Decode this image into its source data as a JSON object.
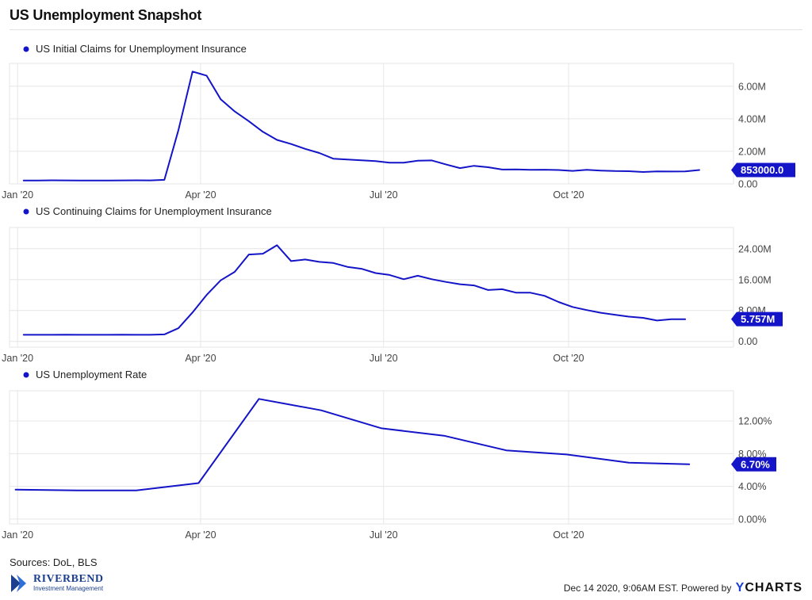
{
  "title": "US Unemployment Snapshot",
  "sources": "Sources: DoL, BLS",
  "footer": {
    "timestamp": "Dec 14 2020, 9:06AM EST. Powered by",
    "brand_prefix": "Y",
    "brand_rest": "CHARTS"
  },
  "logo": {
    "name": "RIVERBEND",
    "tagline": "Investment Management"
  },
  "colors": {
    "series": "#1414c8",
    "grid": "#e6e6e6",
    "axis_text": "#444444"
  },
  "chart_data": [
    {
      "type": "line",
      "series_name": "US Initial Claims for Unemployment Insurance",
      "x_tick_labels": [
        "Jan '20",
        "Apr '20",
        "Jul '20",
        "Oct '20"
      ],
      "x_ticks": [
        "2020-01-01",
        "2020-04-01",
        "2020-07-01",
        "2020-10-01"
      ],
      "x_range": [
        "2019-12-28",
        "2020-12-22"
      ],
      "y_ticks": [
        0,
        2000000,
        4000000,
        6000000
      ],
      "y_tick_labels": [
        "0.00",
        "2.00M",
        "4.00M",
        "6.00M"
      ],
      "ylim": [
        0,
        7400000
      ],
      "last_value_label": "853000.0",
      "x": [
        "2020-01-04",
        "2020-01-11",
        "2020-01-18",
        "2020-01-25",
        "2020-02-01",
        "2020-02-08",
        "2020-02-15",
        "2020-02-22",
        "2020-02-29",
        "2020-03-07",
        "2020-03-14",
        "2020-03-21",
        "2020-03-28",
        "2020-04-04",
        "2020-04-11",
        "2020-04-18",
        "2020-04-25",
        "2020-05-02",
        "2020-05-09",
        "2020-05-16",
        "2020-05-23",
        "2020-05-30",
        "2020-06-06",
        "2020-06-13",
        "2020-06-20",
        "2020-06-27",
        "2020-07-04",
        "2020-07-11",
        "2020-07-18",
        "2020-07-25",
        "2020-08-01",
        "2020-08-08",
        "2020-08-15",
        "2020-08-22",
        "2020-08-29",
        "2020-09-05",
        "2020-09-12",
        "2020-09-19",
        "2020-09-26",
        "2020-10-03",
        "2020-10-10",
        "2020-10-17",
        "2020-10-24",
        "2020-10-31",
        "2020-11-07",
        "2020-11-14",
        "2020-11-21",
        "2020-11-28",
        "2020-12-05"
      ],
      "values": [
        210000,
        210000,
        220000,
        215000,
        210000,
        205000,
        210000,
        215000,
        220000,
        215000,
        250000,
        3300000,
        6900000,
        6650000,
        5200000,
        4450000,
        3850000,
        3200000,
        2700000,
        2450000,
        2150000,
        1900000,
        1550000,
        1500000,
        1450000,
        1400000,
        1300000,
        1300000,
        1420000,
        1440000,
        1200000,
        970000,
        1110000,
        1020000,
        880000,
        890000,
        860000,
        870000,
        850000,
        800000,
        860000,
        820000,
        790000,
        780000,
        730000,
        770000,
        760000,
        770000,
        853000
      ]
    },
    {
      "type": "line",
      "series_name": "US Continuing Claims for Unemployment Insurance",
      "x_tick_labels": [
        "Jan '20",
        "Apr '20",
        "Jul '20",
        "Oct '20"
      ],
      "x_ticks": [
        "2020-01-01",
        "2020-04-01",
        "2020-07-01",
        "2020-10-01"
      ],
      "x_range": [
        "2019-12-28",
        "2020-12-22"
      ],
      "y_ticks": [
        0,
        8000000,
        16000000,
        24000000
      ],
      "y_tick_labels": [
        "0.00",
        "8.00M",
        "16.00M",
        "24.00M"
      ],
      "ylim": [
        -1500000,
        29500000
      ],
      "last_value_label": "5.757M",
      "x": [
        "2020-01-04",
        "2020-01-11",
        "2020-01-18",
        "2020-01-25",
        "2020-02-01",
        "2020-02-08",
        "2020-02-15",
        "2020-02-22",
        "2020-02-29",
        "2020-03-07",
        "2020-03-14",
        "2020-03-21",
        "2020-03-28",
        "2020-04-04",
        "2020-04-11",
        "2020-04-18",
        "2020-04-25",
        "2020-05-02",
        "2020-05-09",
        "2020-05-16",
        "2020-05-23",
        "2020-05-30",
        "2020-06-06",
        "2020-06-13",
        "2020-06-20",
        "2020-06-27",
        "2020-07-04",
        "2020-07-11",
        "2020-07-18",
        "2020-07-25",
        "2020-08-01",
        "2020-08-08",
        "2020-08-15",
        "2020-08-22",
        "2020-08-29",
        "2020-09-05",
        "2020-09-12",
        "2020-09-19",
        "2020-09-26",
        "2020-10-03",
        "2020-10-10",
        "2020-10-17",
        "2020-10-24",
        "2020-10-31",
        "2020-11-07",
        "2020-11-14",
        "2020-11-21",
        "2020-11-28"
      ],
      "values": [
        1700000,
        1700000,
        1700000,
        1750000,
        1700000,
        1700000,
        1700000,
        1750000,
        1700000,
        1700000,
        1800000,
        3400000,
        7500000,
        12000000,
        15800000,
        18000000,
        22500000,
        22700000,
        24900000,
        20800000,
        21200000,
        20600000,
        20300000,
        19300000,
        18800000,
        17700000,
        17200000,
        16100000,
        17000000,
        16100000,
        15400000,
        14800000,
        14500000,
        13300000,
        13500000,
        12600000,
        12600000,
        11800000,
        10200000,
        8900000,
        8100000,
        7400000,
        6900000,
        6400000,
        6100000,
        5400000,
        5757000,
        5757000
      ]
    },
    {
      "type": "line",
      "series_name": "US Unemployment Rate",
      "x_tick_labels": [
        "Jan '20",
        "Apr '20",
        "Jul '20",
        "Oct '20"
      ],
      "x_ticks": [
        "2020-01-01",
        "2020-04-01",
        "2020-07-01",
        "2020-10-01"
      ],
      "x_range": [
        "2019-12-28",
        "2020-12-22"
      ],
      "y_ticks": [
        0,
        4,
        8,
        12
      ],
      "y_tick_labels": [
        "0.00%",
        "4.00%",
        "8.00%",
        "12.00%"
      ],
      "ylim": [
        -0.6,
        15.7
      ],
      "last_value_label": "6.70%",
      "x": [
        "2019-12-31",
        "2020-01-31",
        "2020-02-29",
        "2020-03-31",
        "2020-04-30",
        "2020-05-31",
        "2020-06-30",
        "2020-07-31",
        "2020-08-31",
        "2020-09-30",
        "2020-10-31",
        "2020-11-30"
      ],
      "values": [
        3.6,
        3.5,
        3.5,
        4.4,
        14.7,
        13.3,
        11.1,
        10.2,
        8.4,
        7.9,
        6.9,
        6.7
      ]
    }
  ]
}
